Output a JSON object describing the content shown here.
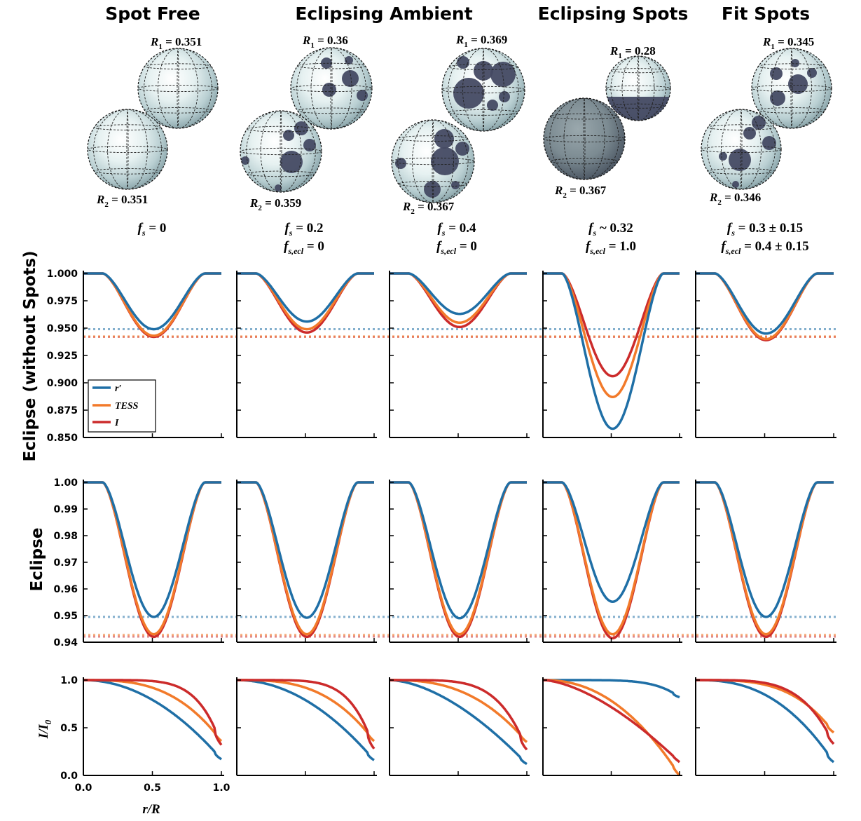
{
  "colors": {
    "r": "#1f6fa6",
    "tess": "#f27a2a",
    "i": "#cc2b2b",
    "spot": "#454a63",
    "sphere_edge": "#7f9aa2"
  },
  "titles": [
    {
      "label": "Spot Free"
    },
    {
      "label": "Eclipsing Ambient"
    },
    {
      "label": "Eclipsing Spots"
    },
    {
      "label": "Fit Spots"
    }
  ],
  "spheres": [
    {
      "r1_text": "R",
      "r1_sub": "1",
      "r1_val": " = 0.351",
      "r2_text": "R",
      "r2_sub": "2",
      "r2_val": " = 0.351",
      "fs_line1": " = 0",
      "fs_line2": ""
    },
    {
      "r1_text": "R",
      "r1_sub": "1",
      "r1_val": " = 0.36",
      "r2_text": "R",
      "r2_sub": "2",
      "r2_val": " = 0.359",
      "fs_line1": " = 0.2",
      "fs_line2": " = 0"
    },
    {
      "r1_text": "R",
      "r1_sub": "1",
      "r1_val": " = 0.369",
      "r2_text": "R",
      "r2_sub": "2",
      "r2_val": " = 0.367",
      "fs_line1": " = 0.4",
      "fs_line2": " = 0"
    },
    {
      "r1_text": "R",
      "r1_sub": "1",
      "r1_val": " = 0.28",
      "r2_text": "R",
      "r2_sub": "2",
      "r2_val": " = 0.367",
      "fs_line1": " ~ 0.32",
      "fs_line2": " = 1.0"
    },
    {
      "r1_text": "R",
      "r1_sub": "1",
      "r1_val": " = 0.345",
      "r2_text": "R",
      "r2_sub": "2",
      "r2_val": " = 0.346",
      "fs_line1": " = 0.3 ± 0.15",
      "fs_line2": " = 0.4 ± 0.15"
    }
  ],
  "fs_symbol": {
    "base": "f",
    "sub": "s",
    "sub2": "s,ecl"
  },
  "chart_data": [
    {
      "type": "line",
      "ylabel": "Eclipse (without Spots)",
      "ylim": [
        0.85,
        1.0
      ],
      "yticks": [
        "1.000",
        "0.975",
        "0.950",
        "0.925",
        "0.900",
        "0.875",
        "0.850"
      ],
      "ytick_values": [
        1.0,
        0.975,
        0.95,
        0.925,
        0.9,
        0.875,
        0.85
      ],
      "reference_lines": {
        "r": 0.949,
        "tess": 0.9425,
        "i": 0.942
      },
      "panels": [
        {
          "series": [
            {
              "name": "r′",
              "min": 0.949
            },
            {
              "name": "TESS",
              "min": 0.943
            },
            {
              "name": "I",
              "min": 0.942
            }
          ]
        },
        {
          "series": [
            {
              "name": "r′",
              "min": 0.956
            },
            {
              "name": "TESS",
              "min": 0.949
            },
            {
              "name": "I",
              "min": 0.946
            }
          ]
        },
        {
          "series": [
            {
              "name": "r′",
              "min": 0.963
            },
            {
              "name": "TESS",
              "min": 0.955
            },
            {
              "name": "I",
              "min": 0.951
            }
          ]
        },
        {
          "series": [
            {
              "name": "r′",
              "min": 0.858
            },
            {
              "name": "TESS",
              "min": 0.887
            },
            {
              "name": "I",
              "min": 0.906
            }
          ]
        },
        {
          "series": [
            {
              "name": "r′",
              "min": 0.945
            },
            {
              "name": "TESS",
              "min": 0.94
            },
            {
              "name": "I",
              "min": 0.939
            }
          ]
        }
      ],
      "legend": {
        "placement": "lower-left",
        "entries": [
          "r′",
          "TESS",
          "I"
        ]
      }
    },
    {
      "type": "line",
      "ylabel": "Eclipse",
      "ylim": [
        0.94,
        1.0
      ],
      "yticks": [
        "1.00",
        "0.99",
        "0.98",
        "0.97",
        "0.96",
        "0.95",
        "0.94"
      ],
      "ytick_values": [
        1.0,
        0.99,
        0.98,
        0.97,
        0.96,
        0.95,
        0.94
      ],
      "reference_lines": {
        "r": 0.9495,
        "tess": 0.9428,
        "i": 0.9421
      },
      "panels": [
        {
          "series": [
            {
              "name": "r′",
              "min": 0.9495
            },
            {
              "name": "TESS",
              "min": 0.943
            },
            {
              "name": "I",
              "min": 0.942
            }
          ]
        },
        {
          "series": [
            {
              "name": "r′",
              "min": 0.9492
            },
            {
              "name": "TESS",
              "min": 0.943
            },
            {
              "name": "I",
              "min": 0.942
            }
          ]
        },
        {
          "series": [
            {
              "name": "r′",
              "min": 0.949
            },
            {
              "name": "TESS",
              "min": 0.943
            },
            {
              "name": "I",
              "min": 0.942
            }
          ]
        },
        {
          "series": [
            {
              "name": "r′",
              "min": 0.9552
            },
            {
              "name": "TESS",
              "min": 0.943
            },
            {
              "name": "I",
              "min": 0.9415
            }
          ]
        },
        {
          "series": [
            {
              "name": "r′",
              "min": 0.9495
            },
            {
              "name": "TESS",
              "min": 0.943
            },
            {
              "name": "I",
              "min": 0.942
            }
          ]
        }
      ]
    },
    {
      "type": "line",
      "ylabel": "I/I0",
      "xlabel": "r/R",
      "xlim": [
        0,
        1
      ],
      "ylim": [
        0,
        1
      ],
      "xticks": [
        "0.0",
        "0.5",
        "1.0"
      ],
      "yticks": [
        "1.0",
        "0.5",
        "0.0"
      ],
      "panels": [
        {
          "series": [
            {
              "name": "r′",
              "end": 0.17
            },
            {
              "name": "TESS",
              "end": 0.36
            },
            {
              "name": "I",
              "end": 0.32
            }
          ]
        },
        {
          "series": [
            {
              "name": "r′",
              "end": 0.16
            },
            {
              "name": "TESS",
              "end": 0.36
            },
            {
              "name": "I",
              "end": 0.28
            }
          ]
        },
        {
          "series": [
            {
              "name": "r′",
              "end": 0.12
            },
            {
              "name": "TESS",
              "end": 0.35
            },
            {
              "name": "I",
              "end": 0.27
            }
          ]
        },
        {
          "series": [
            {
              "name": "r′",
              "end": 0.82
            },
            {
              "name": "TESS",
              "end": 0.0
            },
            {
              "name": "I",
              "end": 0.14
            }
          ]
        },
        {
          "series": [
            {
              "name": "r′",
              "end": 0.14
            },
            {
              "name": "TESS",
              "end": 0.45
            },
            {
              "name": "I",
              "end": 0.33
            }
          ]
        }
      ]
    }
  ]
}
